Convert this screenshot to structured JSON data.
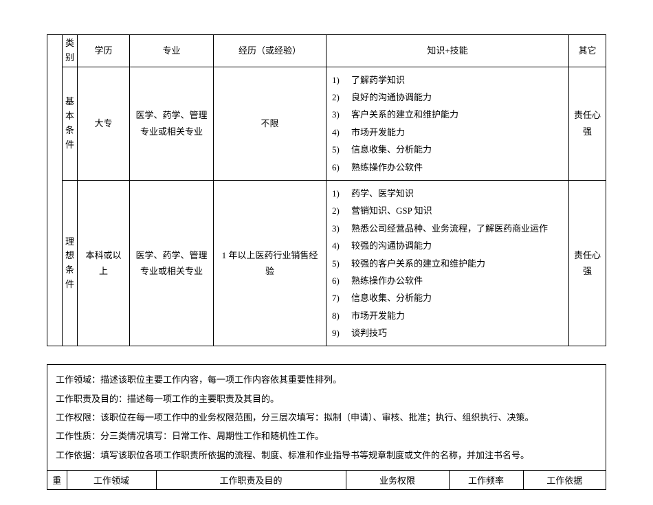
{
  "table1": {
    "header": {
      "col_category": "类别",
      "col_education": "学历",
      "col_major": "专业",
      "col_experience": "经历（或经验）",
      "col_skills": "知识+技能",
      "col_other": "其它"
    },
    "row1": {
      "label": "基本条件",
      "education": "大专",
      "major": "医学、药学、管理专业或相关专业",
      "experience": "不限",
      "skills": [
        "了解药学知识",
        "良好的沟通协调能力",
        "客户关系的建立和维护能力",
        "市场开发能力",
        "信息收集、分析能力",
        "熟练操作办公软件"
      ],
      "other": "责任心强"
    },
    "row2": {
      "label": "理想条件",
      "education": "本科或以上",
      "major": "医学、药学、管理专业或相关专业",
      "experience": "1 年以上医药行业销售经验",
      "skills": [
        "药学、医学知识",
        "营销知识、GSP 知识",
        "熟悉公司经营品种、业务流程，了解医药商业运作",
        "较强的沟通协调能力",
        "较强的客户关系的建立和维护能力",
        "熟练操作办公软件",
        "信息收集、分析能力",
        "市场开发能力",
        "谈判技巧"
      ],
      "other": "责任心强"
    }
  },
  "desc": {
    "line1": "工作领域：描述该职位主要工作内容，每一项工作内容依其重要性排列。",
    "line2": "工作职责及目的：描述每一项工作的主要职责及其目的。",
    "line3": "工作权限：该职位在每一项工作中的业务权限范围，分三层次填写：拟制（申请）、审核、批准；执行、组织执行、决策。",
    "line4": "工作性质：分三类情况填写：日常工作、周期性工作和随机性工作。",
    "line5": "工作依据：填写该职位各项工作职责所依据的流程、制度、标准和作业指导书等规章制度或文件的名称，并加注书名号。"
  },
  "table2": {
    "col1": "重",
    "col2": "工作领域",
    "col3": "工作职责及目的",
    "col4": "业务权限",
    "col5": "工作频率",
    "col6": "工作依据"
  }
}
